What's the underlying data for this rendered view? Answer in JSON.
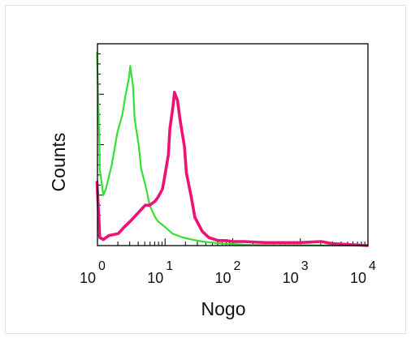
{
  "chart_data": {
    "type": "line",
    "xlabel": "Nogo",
    "ylabel": "Counts",
    "x_scale": "log",
    "xlim": [
      1,
      10000
    ],
    "ylim": [
      0,
      100
    ],
    "x_ticks": [
      {
        "value": 1,
        "base": "10",
        "exp": "0"
      },
      {
        "value": 10,
        "base": "10",
        "exp": "1"
      },
      {
        "value": 100,
        "base": "10",
        "exp": "2"
      },
      {
        "value": 1000,
        "base": "10",
        "exp": "3"
      },
      {
        "value": 10000,
        "base": "10",
        "exp": "4"
      }
    ],
    "grid": false,
    "legend": "none",
    "series": [
      {
        "color": "#33e033",
        "x": [
          1.0,
          1.05,
          1.1,
          1.2,
          1.35,
          1.6,
          2.0,
          2.3,
          2.6,
          2.9,
          3.1,
          3.3,
          3.6,
          4.0,
          4.5,
          5.2,
          6.0,
          7.0,
          8.0,
          10,
          13,
          18,
          25,
          35,
          50,
          70,
          100,
          150,
          300,
          1000,
          10000
        ],
        "y": [
          96,
          50,
          38,
          25,
          28,
          40,
          56,
          65,
          73,
          84,
          89,
          79,
          63,
          50,
          38,
          28,
          20,
          14,
          12,
          9,
          6,
          4,
          3,
          2,
          1.5,
          1,
          0.8,
          0.5,
          0.3,
          0.2,
          0
        ]
      },
      {
        "color": "#ee1177",
        "x": [
          1.0,
          1.05,
          1.1,
          1.2,
          1.5,
          2.0,
          2.5,
          3.0,
          4.0,
          5.0,
          6.0,
          7.0,
          8.0,
          9.0,
          10,
          11,
          12,
          13,
          14,
          15,
          17,
          19,
          21,
          24,
          28,
          35,
          45,
          60,
          80,
          100,
          150,
          300,
          1000,
          2000,
          3000,
          10000
        ],
        "y": [
          32,
          8,
          4,
          3,
          5,
          6,
          9,
          12,
          16,
          20,
          20,
          22,
          24,
          28,
          34,
          45,
          58,
          70,
          76,
          72,
          62,
          49,
          36,
          24,
          14,
          7,
          4,
          2.5,
          2.5,
          2,
          2,
          1.5,
          1.5,
          2,
          1,
          0
        ]
      }
    ]
  }
}
